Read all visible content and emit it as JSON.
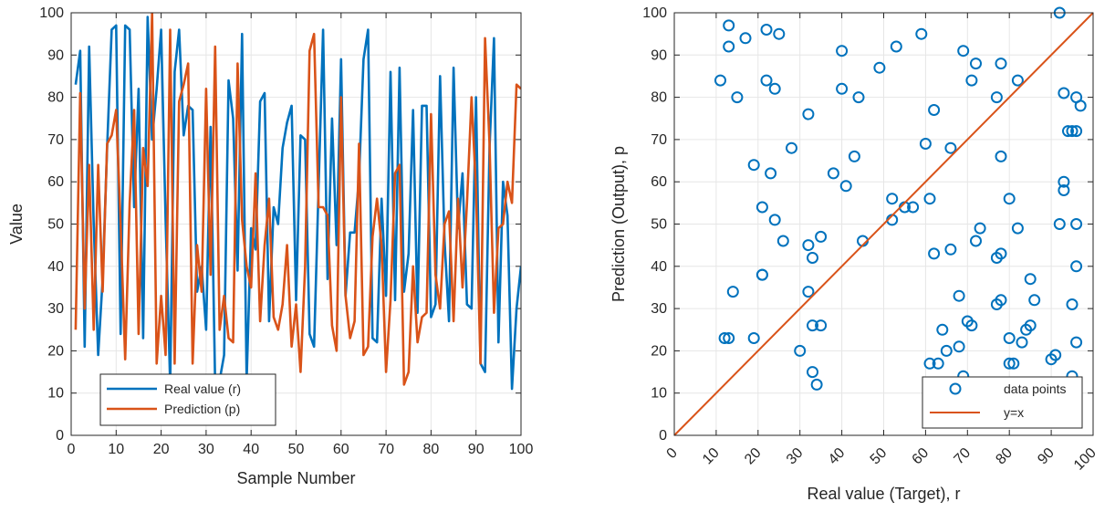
{
  "colors": {
    "real": "#0072BD",
    "prediction": "#D95319",
    "axis": "#262626",
    "grid": "#e6e6e6"
  },
  "chart_data": [
    {
      "type": "line",
      "xlabel": "Sample Number",
      "ylabel": "Value",
      "xlim": [
        0,
        100
      ],
      "ylim": [
        0,
        100
      ],
      "xticks": [
        "0",
        "10",
        "20",
        "30",
        "40",
        "50",
        "60",
        "70",
        "80",
        "90",
        "100"
      ],
      "yticks": [
        "0",
        "10",
        "20",
        "30",
        "40",
        "50",
        "60",
        "70",
        "80",
        "90",
        "100"
      ],
      "grid": true,
      "legend_position": "bottom-left",
      "x": [
        1,
        2,
        3,
        4,
        5,
        6,
        7,
        8,
        9,
        10,
        11,
        12,
        13,
        14,
        15,
        16,
        17,
        18,
        19,
        20,
        21,
        22,
        23,
        24,
        25,
        26,
        27,
        28,
        29,
        30,
        31,
        32,
        33,
        34,
        35,
        36,
        37,
        38,
        39,
        40,
        41,
        42,
        43,
        44,
        45,
        46,
        47,
        48,
        49,
        50,
        51,
        52,
        53,
        54,
        55,
        56,
        57,
        58,
        59,
        60,
        61,
        62,
        63,
        64,
        65,
        66,
        67,
        68,
        69,
        70,
        71,
        72,
        73,
        74,
        75,
        76,
        77,
        78,
        79,
        80,
        81,
        82,
        83,
        84,
        85,
        86,
        87,
        88,
        89,
        90,
        91,
        92,
        93,
        94,
        95,
        96,
        97,
        98,
        99,
        100
      ],
      "series": [
        {
          "name": "Real value (r)",
          "values": [
            83,
            91,
            21,
            92,
            50,
            19,
            37,
            68,
            96,
            97,
            24,
            97,
            96,
            54,
            82,
            23,
            99,
            70,
            82,
            96,
            51,
            12,
            86,
            96,
            71,
            78,
            77,
            34,
            40,
            25,
            73,
            12,
            13,
            19,
            84,
            75,
            39,
            95,
            13,
            49,
            44,
            79,
            81,
            27,
            54,
            50,
            68,
            74,
            78,
            32,
            71,
            70,
            24,
            21,
            59,
            96,
            37,
            75,
            45,
            89,
            33,
            48,
            48,
            61,
            89,
            96,
            23,
            22,
            56,
            33,
            86,
            32,
            87,
            34,
            43,
            77,
            29,
            78,
            78,
            28,
            31,
            85,
            46,
            27,
            87,
            49,
            62,
            31,
            30,
            80,
            17,
            15,
            68,
            94,
            22,
            60,
            52,
            11,
            30,
            40
          ]
        },
        {
          "name": "Prediction (p)",
          "values": [
            25,
            81,
            30,
            64,
            25,
            64,
            34,
            69,
            71,
            77,
            50,
            18,
            55,
            77,
            24,
            68,
            59,
            100,
            17,
            33,
            19,
            96,
            17,
            79,
            83,
            88,
            17,
            45,
            34,
            82,
            38,
            92,
            25,
            33,
            23,
            22,
            88,
            51,
            40,
            35,
            62,
            27,
            45,
            56,
            28,
            25,
            31,
            45,
            21,
            31,
            15,
            40,
            91,
            95,
            54,
            54,
            52,
            26,
            20,
            80,
            33,
            23,
            27,
            69,
            19,
            21,
            47,
            56,
            45,
            15,
            32,
            62,
            64,
            12,
            15,
            40,
            22,
            28,
            29,
            76,
            38,
            30,
            50,
            53,
            27,
            56,
            35,
            55,
            80,
            58,
            17,
            94,
            69,
            29,
            49,
            50,
            60,
            55,
            83,
            82
          ]
        }
      ]
    },
    {
      "type": "scatter",
      "xlabel": "Real value (Target), r",
      "ylabel": "Prediction (Output), p",
      "xlim": [
        0,
        100
      ],
      "ylim": [
        0,
        100
      ],
      "xticks": [
        "0",
        "10",
        "20",
        "30",
        "40",
        "50",
        "60",
        "70",
        "80",
        "90",
        "100"
      ],
      "yticks": [
        "0",
        "10",
        "20",
        "30",
        "40",
        "50",
        "60",
        "70",
        "80",
        "90",
        "100"
      ],
      "grid": true,
      "legend_position": "bottom-right",
      "series": [
        {
          "name": "data points",
          "x": [
            13,
            13,
            17,
            12,
            15,
            11,
            22,
            25,
            22,
            24,
            28,
            19,
            23,
            21,
            24,
            26,
            21,
            21,
            14,
            13,
            19,
            32,
            32,
            33,
            33,
            34,
            35,
            32,
            30,
            33,
            35,
            38,
            40,
            44,
            40,
            43,
            41,
            45,
            49,
            52,
            53,
            52,
            55,
            57,
            59,
            60,
            61,
            62,
            62,
            63,
            69,
            72,
            71,
            68,
            66,
            68,
            64,
            65,
            72,
            73,
            69,
            71,
            70,
            66,
            78,
            77,
            78,
            82,
            78,
            77,
            80,
            80,
            84,
            78,
            82,
            85,
            77,
            80,
            81,
            83,
            85,
            86,
            91,
            92,
            93,
            95,
            96,
            96,
            93,
            92,
            93,
            96,
            96,
            95,
            96,
            95,
            90,
            94,
            97,
            61
          ],
          "y": [
            97,
            92,
            94,
            23,
            80,
            84,
            96,
            95,
            84,
            82,
            68,
            64,
            62,
            54,
            51,
            46,
            38,
            38,
            34,
            23,
            23,
            76,
            45,
            42,
            15,
            12,
            47,
            34,
            20,
            26,
            26,
            62,
            82,
            80,
            91,
            66,
            59,
            46,
            87,
            56,
            92,
            51,
            54,
            54,
            95,
            69,
            56,
            77,
            43,
            17,
            91,
            88,
            84,
            33,
            68,
            21,
            25,
            20,
            46,
            49,
            14,
            26,
            27,
            44,
            88,
            80,
            66,
            84,
            43,
            42,
            17,
            23,
            25,
            32,
            49,
            37,
            31,
            56,
            17,
            22,
            26,
            32,
            19,
            100,
            81,
            72,
            80,
            72,
            58,
            50,
            60,
            50,
            40,
            31,
            22,
            14,
            18,
            72,
            78,
            17
          ]
        },
        {
          "name": "y=x",
          "line": [
            [
              0,
              0
            ],
            [
              100,
              100
            ]
          ]
        }
      ]
    }
  ]
}
